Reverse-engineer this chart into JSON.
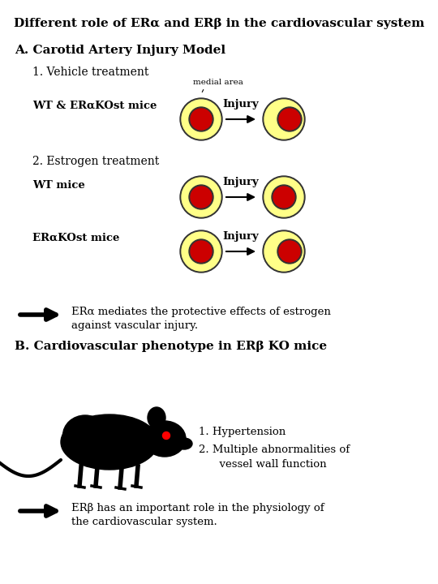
{
  "title": "Different role of ERα and ERβ in the cardiovascular system",
  "section_a": "A. Carotid Artery Injury Model",
  "sub1": "1. Vehicle treatment",
  "sub2": "2. Estrogen treatment",
  "label_wt_er": "WT & ERαKOst mice",
  "label_wt": "WT mice",
  "label_er": "ERαKOst mice",
  "medial_area": "medial area",
  "injury": "Injury",
  "conclusion_a1": "ERα mediates the protective effects of estrogen",
  "conclusion_a2": "against vascular injury.",
  "section_b": "B. Cardiovascular phenotype in ERβ KO mice",
  "list1": "1. Hypertension",
  "list2": "2. Multiple abnormalities of",
  "list3": "      vessel wall function",
  "conclusion_b1": "ERβ has an important role in the physiology of",
  "conclusion_b2": "the cardiovascular system.",
  "bg_color": "#ffffff",
  "yellow": "#FFFF88",
  "red": "#CC0000",
  "black": "#000000",
  "gray_outline": "#111111"
}
